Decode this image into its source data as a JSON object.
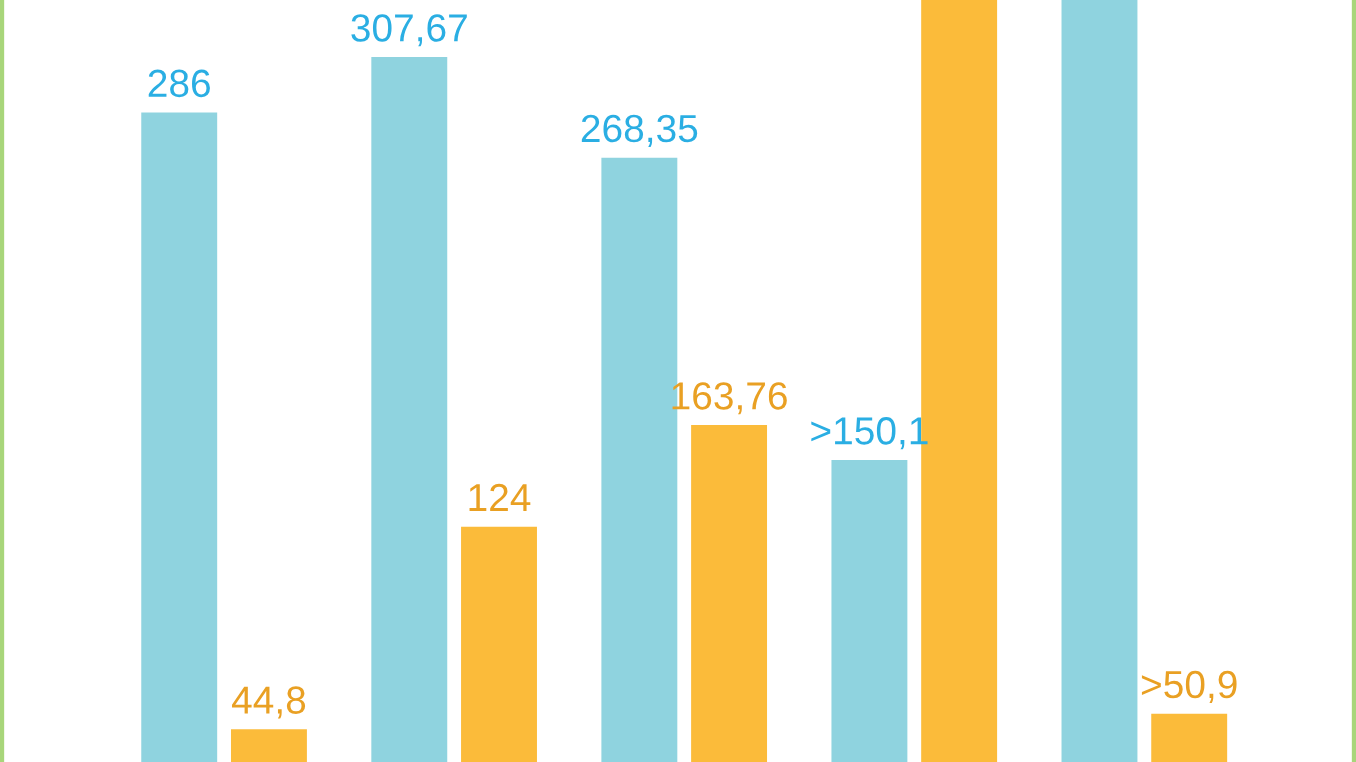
{
  "chart_data": {
    "type": "bar",
    "categories": [
      null,
      null,
      null,
      null,
      null
    ],
    "ylim": [
      32,
      330
    ],
    "series": [
      {
        "color": "#8fd3df",
        "values": [
          286,
          307.67,
          268.35,
          150.1,
          330
        ],
        "value_labels": [
          "286",
          "307,67",
          "268,35",
          ">150,1",
          null
        ]
      },
      {
        "color": "#fbbb3a",
        "values": [
          44.8,
          124,
          163.76,
          330,
          50.9
        ],
        "value_labels": [
          "44,8",
          "124",
          "163,76",
          null,
          ">50,9"
        ]
      }
    ]
  }
}
